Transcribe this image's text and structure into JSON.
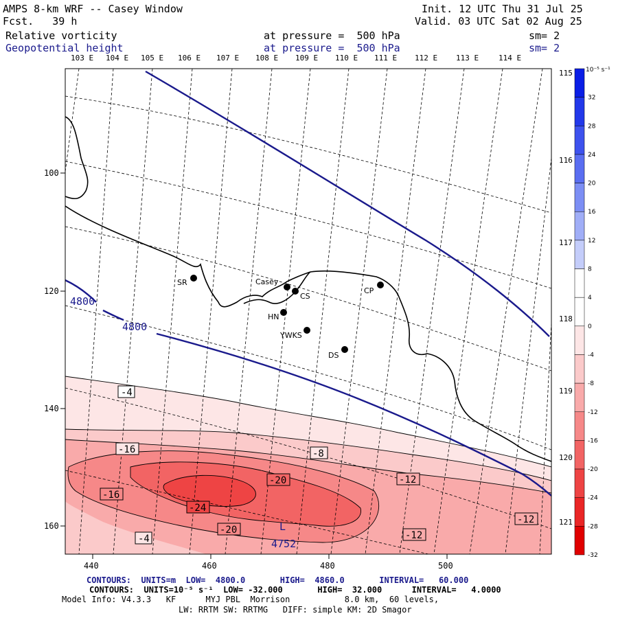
{
  "header": {
    "title": "AMPS 8-km WRF -- Casey Window",
    "fcst": "Fcst.   39 h",
    "init": "Init. 12 UTC Thu 31 Jul 25",
    "valid": "Valid. 03 UTC Sat 02 Aug 25",
    "field1": "Relative vorticity",
    "field2": "Geopotential height",
    "pressure1": "at pressure =  500 hPa",
    "pressure2": "at pressure =  500 hPa",
    "sm1": "sm= 2",
    "sm2": "sm= 2"
  },
  "lon_labels_top": [
    "103 E",
    "104 E",
    "105 E",
    "106 E",
    "107 E",
    "108 E",
    "109 E",
    "110 E",
    "111 E",
    "112 E",
    "113 E",
    "114 E"
  ],
  "lon_labels_right": [
    "115 E",
    "116 E",
    "117 E",
    "118 E",
    "119 E",
    "120 E",
    "121 E"
  ],
  "y_ticks": [
    "100",
    "120",
    "140",
    "160"
  ],
  "x_ticks": [
    "440",
    "460",
    "480",
    "500"
  ],
  "stations": [
    {
      "label": "SR"
    },
    {
      "label": "Casey"
    },
    {
      "label": "CS"
    },
    {
      "label": "HN"
    },
    {
      "label": "YWKS"
    },
    {
      "label": "DS"
    },
    {
      "label": "CP"
    }
  ],
  "height_contours": [
    {
      "label": "4800"
    },
    {
      "label": "4800"
    }
  ],
  "low_marker": {
    "symbol": "L",
    "value": "4752"
  },
  "vorticity_labels": [
    "-4",
    "-16",
    "-8",
    "-16",
    "-20",
    "-12",
    "-24",
    "-20",
    "-12",
    "-12",
    "-4"
  ],
  "colorbar": {
    "unit": "10⁻⁵ s⁻¹",
    "ticks": [
      "32",
      "28",
      "24",
      "20",
      "16",
      "12",
      "8",
      "4",
      "0",
      "-4",
      "-8",
      "-12",
      "-16",
      "-20",
      "-24",
      "-28",
      "-32"
    ],
    "colors": [
      "#0a1ee6",
      "#2238ea",
      "#3d52ee",
      "#5a6ef1",
      "#7c8ef4",
      "#a0aef7",
      "#c4cdfa",
      "#ffffff",
      "#ffffff",
      "#fde6e6",
      "#fbcaca",
      "#f9aaaa",
      "#f68888",
      "#f26464",
      "#ee4444",
      "#ea2626",
      "#e00000"
    ]
  },
  "footer": {
    "line1": "CONTOURS:  UNITS=m  LOW=  4800.0       HIGH=  4860.0       INTERVAL=   60.000",
    "line2": "CONTOURS:  UNITS=10⁻⁵ s⁻¹  LOW= -32.000       HIGH=  32.000      INTERVAL=   4.0000",
    "line3": "Model Info: V4.3.3   KF      MYJ PBL  Morrison           8.0 km,  60 levels,",
    "line4": "LW: RRTM SW: RRTMG   DIFF: simple KM: 2D Smagor"
  }
}
